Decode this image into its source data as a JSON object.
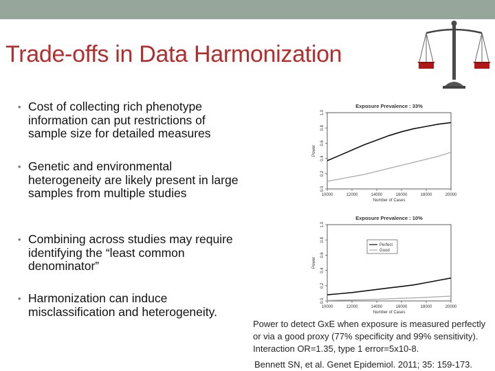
{
  "slide": {
    "title": "Trade-offs in Data Harmonization",
    "bullets": [
      "Cost of collecting rich phenotype information can put restrictions of sample size for detailed measures",
      "Genetic and environmental heterogeneity are likely present in large samples from multiple studies",
      "Combining across studies may require identifying the “least common denominator”",
      "Harmonization can induce misclassification and heterogeneity."
    ],
    "caption": "Power to detect GxE when exposure is measured perfectly or via a good proxy (77% specificity and 99% sensitivity). Interaction OR=1.35, type 1 error=5x10-8.",
    "citation": "Bennett SN, et al. Genet Epidemiol. 2011; 35: 159-173.",
    "scale_icon": "balance-scale-icon"
  },
  "chart_data": [
    {
      "type": "line",
      "title": "Exposure Prevalence : 33%",
      "xlabel": "Number of Cases",
      "ylabel": "Power",
      "xlim": [
        10000,
        20000
      ],
      "ylim": [
        0,
        1
      ],
      "x_ticks": [
        "10000",
        "12000",
        "14000",
        "16000",
        "18000",
        "20000"
      ],
      "y_ticks": [
        "0.0",
        "0.2",
        "0.4",
        "0.6",
        "0.8",
        "1.0"
      ],
      "x": [
        10000,
        11000,
        12000,
        13000,
        14000,
        15000,
        16000,
        17000,
        18000,
        19000,
        20000
      ],
      "series": [
        {
          "name": "Perfect",
          "color": "#111111",
          "values": [
            0.37,
            0.44,
            0.51,
            0.58,
            0.64,
            0.7,
            0.75,
            0.79,
            0.82,
            0.85,
            0.87
          ]
        },
        {
          "name": "Good",
          "color": "#aaaaaa",
          "values": [
            0.1,
            0.13,
            0.16,
            0.19,
            0.23,
            0.27,
            0.31,
            0.35,
            0.39,
            0.43,
            0.48
          ]
        }
      ],
      "legend": null
    },
    {
      "type": "line",
      "title": "Exposure Prevalence : 10%",
      "xlabel": "Number of Cases",
      "ylabel": "Power",
      "xlim": [
        10000,
        20000
      ],
      "ylim": [
        0,
        1
      ],
      "x_ticks": [
        "10000",
        "12000",
        "14000",
        "16000",
        "18000",
        "20000"
      ],
      "y_ticks": [
        "0.0",
        "0.2",
        "0.4",
        "0.6",
        "0.8",
        "1.0"
      ],
      "x": [
        10000,
        11000,
        12000,
        13000,
        14000,
        15000,
        16000,
        17000,
        18000,
        19000,
        20000
      ],
      "series": [
        {
          "name": "Perfect",
          "color": "#111111",
          "values": [
            0.08,
            0.095,
            0.11,
            0.13,
            0.15,
            0.17,
            0.19,
            0.21,
            0.24,
            0.27,
            0.3
          ]
        },
        {
          "name": "Good",
          "color": "#aaaaaa",
          "values": [
            0.005,
            0.01,
            0.013,
            0.017,
            0.022,
            0.028,
            0.034,
            0.04,
            0.047,
            0.055,
            0.063
          ]
        }
      ],
      "legend": "middle-left"
    }
  ]
}
